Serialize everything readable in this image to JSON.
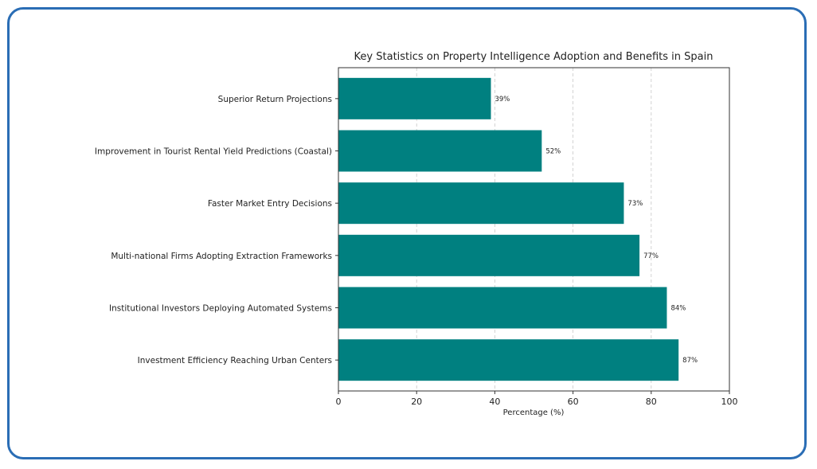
{
  "chart_data": {
    "type": "bar",
    "orientation": "horizontal",
    "title": "Key Statistics on Property Intelligence Adoption and Benefits in Spain",
    "xlabel": "Percentage (%)",
    "ylabel": "",
    "xlim": [
      0,
      100
    ],
    "xticks": [
      0,
      20,
      40,
      60,
      80,
      100
    ],
    "grid": "x, dashed",
    "bar_color": "#008080",
    "frame_color": "#2a6db5",
    "categories": [
      "Superior Return Projections",
      "Improvement in Tourist Rental Yield Predictions (Coastal)",
      "Faster Market Entry Decisions",
      "Multi-national Firms Adopting Extraction Frameworks",
      "Institutional Investors Deploying Automated Systems",
      "Investment Efficiency Reaching Urban Centers"
    ],
    "values": [
      39,
      52,
      73,
      77,
      84,
      87
    ],
    "data_labels": [
      "39%",
      "52%",
      "73%",
      "77%",
      "84%",
      "87%"
    ]
  }
}
